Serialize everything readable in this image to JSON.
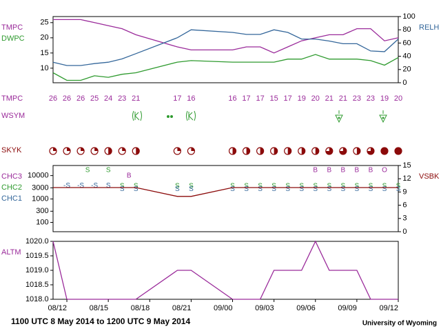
{
  "chart_data": [
    {
      "type": "line",
      "xlim": [
        0,
        25
      ],
      "x": [
        0,
        1,
        2,
        3,
        4,
        5,
        6,
        9,
        10,
        13,
        14,
        15,
        16,
        17,
        18,
        19,
        20,
        21,
        22,
        23,
        24,
        25
      ],
      "ylim": [
        5.2,
        27
      ],
      "yticks": [
        10,
        15,
        20,
        25
      ],
      "y2lim": [
        0,
        100
      ],
      "y2ticks": [
        0,
        20,
        40,
        60,
        80,
        100
      ],
      "series": [
        {
          "name": "TMPC",
          "color": "#9a2a9a",
          "values": [
            26,
            26,
            26,
            25,
            24,
            23,
            21,
            17,
            16,
            16,
            17,
            17,
            15,
            17,
            19,
            20,
            21,
            21,
            23,
            23,
            19,
            20
          ]
        },
        {
          "name": "DWPC",
          "color": "#2e9a2e",
          "values": [
            8.5,
            6,
            6,
            7.5,
            7,
            8,
            8.5,
            12,
            12.5,
            12,
            12,
            12,
            12,
            13,
            13,
            14.5,
            13,
            13,
            13,
            12.5,
            11,
            13.5
          ]
        },
        {
          "name": "RELH",
          "color": "#33669a",
          "axis": "y2",
          "values": [
            31,
            26,
            26,
            29,
            31,
            36,
            44,
            68,
            80,
            76,
            73,
            73,
            80,
            76,
            66,
            66,
            63,
            59,
            59,
            48,
            47,
            66
          ]
        }
      ]
    },
    {
      "type": "sky",
      "xlim": [
        0,
        25
      ],
      "wsym_label": "WSYM",
      "label": "SKYK",
      "color": "#8b0a0a",
      "x": [
        0,
        1,
        2,
        3,
        4,
        5,
        6,
        9,
        10,
        13,
        14,
        15,
        16,
        17,
        18,
        19,
        20,
        21,
        22,
        23,
        24,
        25
      ],
      "values": [
        1,
        1,
        1,
        1,
        2,
        1,
        2,
        1,
        1,
        2,
        2,
        2,
        2,
        2,
        2,
        2,
        3,
        3,
        2,
        3,
        4,
        4
      ]
    },
    {
      "type": "cloud",
      "xlim": [
        0,
        25
      ],
      "log_y": true,
      "ylim": [
        40,
        27000
      ],
      "yticks": [
        100,
        300,
        1000,
        3000,
        10000
      ],
      "y2lim": [
        0,
        15
      ],
      "y2ticks": [
        0,
        3,
        6,
        9,
        12,
        15
      ],
      "series": [
        {
          "name": "CHC3",
          "color": "#9a2a9a",
          "x": [
            5.5,
            19,
            20,
            21,
            22,
            23,
            24
          ],
          "values": [
            10000,
            17000,
            17000,
            17000,
            17000,
            17000,
            17000
          ],
          "codes": [
            "B",
            "B",
            "B",
            "B",
            "B",
            "B",
            "O"
          ]
        },
        {
          "name": "CHC2",
          "color": "#2e9a2e",
          "x": [
            2.5,
            4,
            5,
            6,
            9,
            10,
            13,
            14,
            15,
            16,
            17,
            18,
            19,
            20,
            21,
            22,
            23,
            24,
            25
          ],
          "values": [
            17000,
            17000,
            3500,
            3500,
            3500,
            3500,
            3500,
            3500,
            3500,
            3500,
            3500,
            3500,
            3500,
            3500,
            3500,
            3500,
            3500,
            3500,
            3500
          ],
          "codes": [
            "S",
            "S",
            "S",
            "S",
            "S",
            "S",
            "S",
            "S",
            "S",
            "S",
            "S",
            "S",
            "S",
            "S",
            "S",
            "S",
            "S",
            "S",
            "S"
          ]
        },
        {
          "name": "CHC1",
          "color": "#33669a",
          "x": [
            1,
            2,
            3,
            4,
            5,
            6,
            9,
            10,
            13,
            14,
            15,
            16,
            17,
            18,
            19,
            20,
            21,
            22,
            23,
            24,
            25
          ],
          "values": [
            3700,
            3700,
            3700,
            3700,
            2600,
            2600,
            2600,
            2600,
            2600,
            2600,
            2600,
            2600,
            2600,
            2600,
            2600,
            2600,
            2600,
            2600,
            2600,
            2600,
            2600
          ],
          "codes": [
            "-S",
            "-S",
            "-S",
            "S",
            "S",
            "S",
            "S",
            "S",
            "S",
            "S",
            "S",
            "S",
            "S",
            "S",
            "S",
            "S",
            "S",
            "S",
            "S",
            "S",
            "S"
          ]
        },
        {
          "name": "VSBK",
          "color": "#8b0a0a",
          "axis": "y2",
          "x": [
            0,
            1,
            2,
            3,
            4,
            5,
            6,
            9,
            10,
            13,
            14,
            15,
            16,
            17,
            18,
            19,
            20,
            21,
            22,
            23,
            24,
            25
          ],
          "values": [
            10,
            10,
            10,
            10,
            10,
            10,
            10,
            8,
            8,
            10,
            10,
            10,
            10,
            10,
            10,
            10,
            10,
            10,
            10,
            10,
            10,
            10
          ]
        }
      ]
    },
    {
      "type": "line",
      "xlim": [
        0,
        25
      ],
      "x": [
        0,
        1,
        2,
        3,
        4,
        5,
        6,
        9,
        10,
        13,
        14,
        15,
        16,
        17,
        18,
        19,
        20,
        21,
        22,
        23,
        24,
        25
      ],
      "ylim": [
        1018,
        1020
      ],
      "yticks": [
        {
          "value": 1018,
          "label": "1018.0"
        },
        {
          "value": 1018.5,
          "label": "1018.5"
        },
        {
          "value": 1019,
          "label": "1019.0"
        },
        {
          "value": 1019.5,
          "label": "1019.5"
        },
        {
          "value": 1020,
          "label": "1020.0"
        }
      ],
      "xticks": [
        {
          "value": 1,
          "label": "08/12"
        },
        {
          "value": 4,
          "label": "08/15"
        },
        {
          "value": 7,
          "label": "08/18"
        },
        {
          "value": 10,
          "label": "08/21"
        },
        {
          "value": 13,
          "label": "09/00"
        },
        {
          "value": 16,
          "label": "09/03"
        },
        {
          "value": 19,
          "label": "09/06"
        },
        {
          "value": 22,
          "label": "09/09"
        },
        {
          "value": 25,
          "label": "09/12"
        }
      ],
      "series": [
        {
          "name": "ALTM",
          "color": "#9a2a9a",
          "values": [
            1020,
            1018,
            1018,
            1018,
            1018,
            1018,
            1018,
            1019,
            1019,
            1018,
            1018,
            1018,
            1019,
            1019,
            1019,
            1020,
            1019,
            1019,
            1019,
            1018,
            1018,
            1018
          ]
        }
      ]
    }
  ],
  "footer": {
    "left": "1100 UTC 8 May 2014 to 1200 UTC 9 May 2014",
    "right": "University of Wyoming"
  }
}
